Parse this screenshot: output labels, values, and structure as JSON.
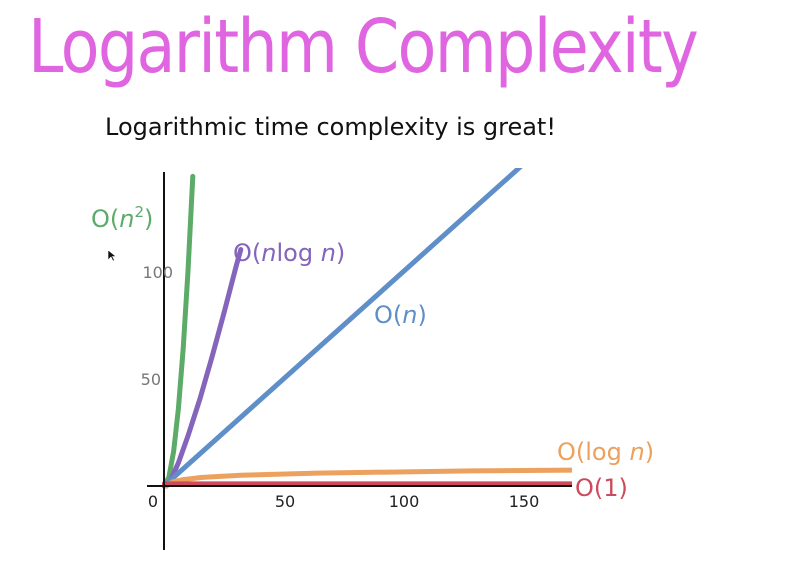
{
  "slide": {
    "title": "Logarithm Complexity",
    "subtitle": "Logarithmic time complexity is great!"
  },
  "chart_data": {
    "type": "line",
    "xlim": [
      0,
      170
    ],
    "ylim": [
      0,
      130
    ],
    "x_ticks": [
      "0",
      "50",
      "100",
      "150"
    ],
    "y_ticks": [
      "50",
      "100"
    ],
    "grid": false,
    "legend": "labels placed directly beside each curve",
    "series": [
      {
        "name": "O(n²)",
        "label_main": "O(",
        "label_var": "n",
        "label_sup": "2",
        "label_end": ")",
        "color": "#5cab68",
        "x": [
          0,
          2,
          4,
          6,
          8,
          10,
          12
        ],
        "y": [
          0,
          4,
          16,
          36,
          64,
          100,
          144
        ]
      },
      {
        "name": "O(nlog n)",
        "label_main": "O(",
        "label_var": "n",
        "label_mid": "log ",
        "label_var2": "n",
        "label_end": ")",
        "color": "#8565bb",
        "x": [
          1,
          3,
          6,
          10,
          15,
          20,
          25,
          30,
          32
        ],
        "y": [
          0,
          3.3,
          10.8,
          23.3,
          40.6,
          60,
          80.5,
          102,
          110
        ]
      },
      {
        "name": "O(n)",
        "label_main": "O(",
        "label_var": "n",
        "label_end": ")",
        "color": "#5f8fc8",
        "x": [
          0,
          150
        ],
        "y": [
          0,
          150
        ]
      },
      {
        "name": "O(log n)",
        "label_main": "O(log ",
        "label_var": "n",
        "label_end": ")",
        "color": "#eca15e",
        "x": [
          1,
          2,
          4,
          8,
          16,
          32,
          64,
          128,
          170
        ],
        "y": [
          0,
          1,
          2,
          3,
          4,
          5,
          6,
          7,
          7.4
        ]
      },
      {
        "name": "O(1)",
        "label_main": "O(1)",
        "color": "#cd4a5c",
        "x": [
          0,
          170
        ],
        "y": [
          1,
          1
        ]
      }
    ]
  }
}
